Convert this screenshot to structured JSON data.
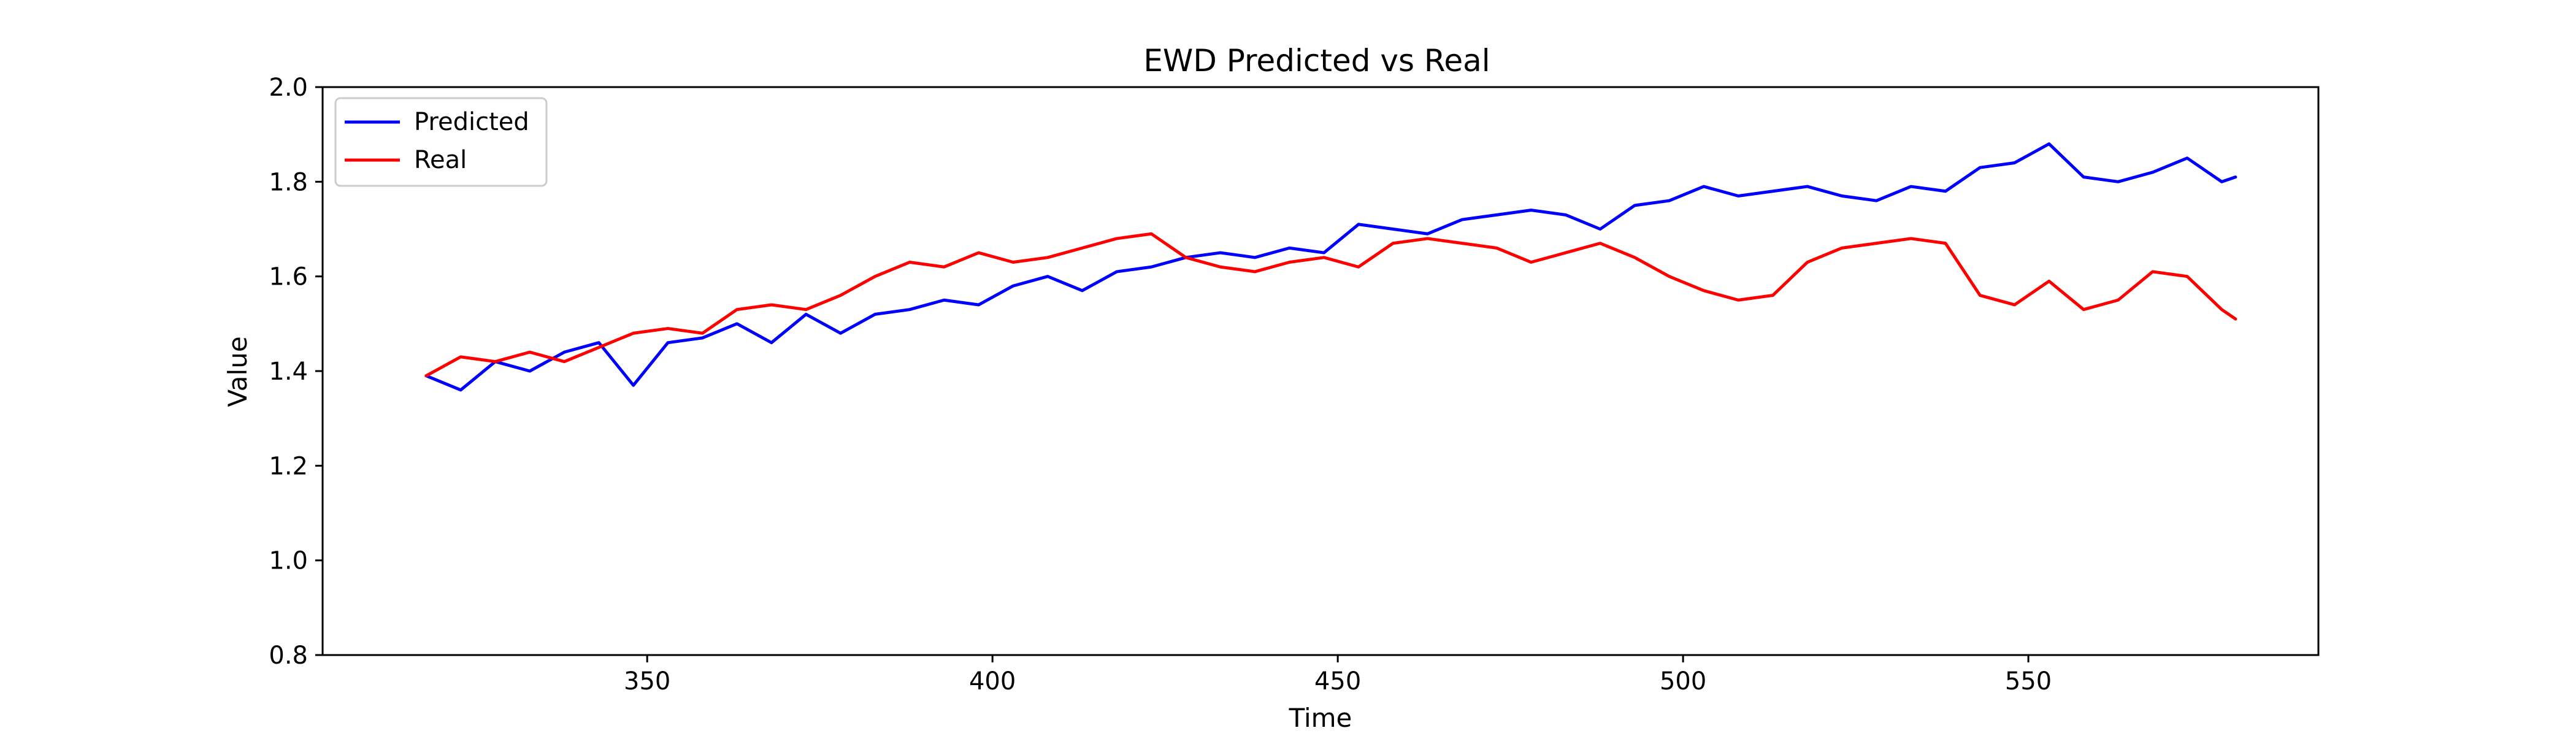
{
  "chart_data": {
    "type": "line",
    "title": "EWD Predicted vs Real",
    "xlabel": "Time",
    "ylabel": "Value",
    "xlim": [
      303,
      592
    ],
    "ylim": [
      0.8,
      2.0
    ],
    "x_ticks": [
      350,
      400,
      450,
      500,
      550
    ],
    "y_ticks": [
      0.8,
      1.0,
      1.2,
      1.4,
      1.6,
      1.8,
      2.0
    ],
    "x_tick_labels": [
      "350",
      "400",
      "450",
      "500",
      "550"
    ],
    "y_tick_labels": [
      "0.8",
      "1.0",
      "1.2",
      "1.4",
      "1.6",
      "1.8",
      "2.0"
    ],
    "grid": false,
    "legend_position": "top-left",
    "x": [
      318,
      323,
      328,
      333,
      338,
      343,
      348,
      353,
      358,
      363,
      368,
      373,
      378,
      383,
      388,
      393,
      398,
      403,
      408,
      413,
      418,
      423,
      428,
      433,
      438,
      443,
      448,
      453,
      458,
      463,
      468,
      473,
      478,
      483,
      488,
      493,
      498,
      503,
      508,
      513,
      518,
      523,
      528,
      533,
      538,
      543,
      548,
      553,
      558,
      563,
      568,
      573,
      578,
      580
    ],
    "series": [
      {
        "name": "Predicted",
        "color": "#0000ff",
        "values": [
          1.39,
          1.36,
          1.42,
          1.4,
          1.44,
          1.46,
          1.37,
          1.46,
          1.47,
          1.5,
          1.46,
          1.52,
          1.48,
          1.52,
          1.53,
          1.55,
          1.54,
          1.58,
          1.6,
          1.57,
          1.61,
          1.62,
          1.64,
          1.65,
          1.64,
          1.66,
          1.65,
          1.71,
          1.7,
          1.69,
          1.72,
          1.73,
          1.74,
          1.73,
          1.7,
          1.75,
          1.76,
          1.79,
          1.77,
          1.78,
          1.79,
          1.77,
          1.76,
          1.79,
          1.78,
          1.83,
          1.84,
          1.88,
          1.81,
          1.8,
          1.82,
          1.85,
          1.8,
          1.81
        ]
      },
      {
        "name": "Real",
        "color": "#ff0000",
        "values": [
          1.39,
          1.43,
          1.42,
          1.44,
          1.42,
          1.45,
          1.48,
          1.49,
          1.48,
          1.53,
          1.54,
          1.53,
          1.56,
          1.6,
          1.63,
          1.62,
          1.65,
          1.63,
          1.64,
          1.66,
          1.68,
          1.69,
          1.64,
          1.62,
          1.61,
          1.63,
          1.64,
          1.62,
          1.67,
          1.68,
          1.67,
          1.66,
          1.63,
          1.65,
          1.67,
          1.64,
          1.6,
          1.57,
          1.55,
          1.56,
          1.63,
          1.66,
          1.67,
          1.68,
          1.67,
          1.56,
          1.54,
          1.59,
          1.53,
          1.55,
          1.61,
          1.6,
          1.53,
          1.51
        ]
      }
    ]
  }
}
